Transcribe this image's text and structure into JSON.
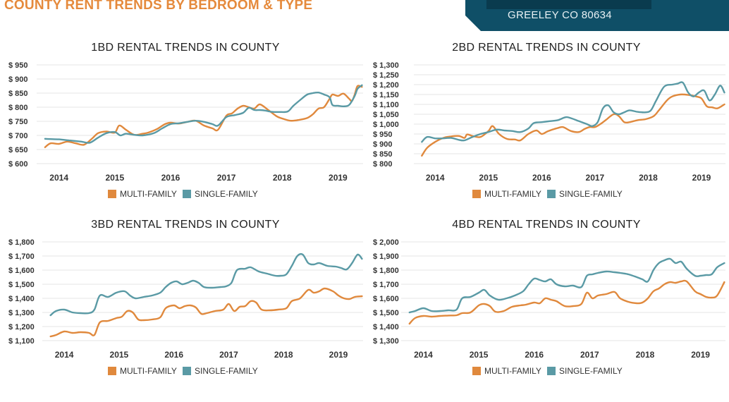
{
  "page": {
    "title": "COUNTY RENT TRENDS BY BEDROOM & TYPE",
    "location": "GREELEY CO 80634"
  },
  "colors": {
    "multi_family": "#e0893d",
    "single_family": "#5a9aa5",
    "grid": "#e6e6e6"
  },
  "chart_data": [
    {
      "type": "line",
      "title": "1BD RENTAL TRENDS IN COUNTY",
      "ylim": [
        600,
        950
      ],
      "yticks": [
        600,
        650,
        700,
        750,
        800,
        850,
        900,
        950
      ],
      "ytick_labels": [
        "$ 600",
        "$ 650",
        "$ 700",
        "$ 750",
        "$ 800",
        "$ 850",
        "$ 900",
        "$ 950"
      ],
      "xlim": [
        2013.6,
        2019.45
      ],
      "xticks": [
        2014,
        2015,
        2016,
        2017,
        2018,
        2019
      ],
      "xtick_labels": [
        "2014",
        "2015",
        "2016",
        "2017",
        "2018",
        "2019"
      ],
      "grid": true,
      "legend": "bottom",
      "series": [
        {
          "name": "MULTI-FAMILY",
          "x": [
            2013.75,
            2013.85,
            2014.0,
            2014.15,
            2014.3,
            2014.45,
            2014.6,
            2014.7,
            2014.85,
            2015.0,
            2015.08,
            2015.2,
            2015.35,
            2015.5,
            2015.6,
            2015.75,
            2015.9,
            2016.0,
            2016.15,
            2016.3,
            2016.45,
            2016.6,
            2016.75,
            2016.85,
            2017.0,
            2017.1,
            2017.2,
            2017.3,
            2017.4,
            2017.5,
            2017.6,
            2017.75,
            2017.9,
            2018.0,
            2018.15,
            2018.3,
            2018.45,
            2018.55,
            2018.65,
            2018.75,
            2018.85,
            2018.9,
            2019.0,
            2019.1,
            2019.2,
            2019.25,
            2019.3,
            2019.35,
            2019.43
          ],
          "y": [
            658,
            672,
            670,
            678,
            672,
            667,
            690,
            708,
            714,
            710,
            735,
            720,
            702,
            706,
            710,
            722,
            740,
            745,
            742,
            748,
            752,
            735,
            725,
            720,
            770,
            778,
            795,
            805,
            800,
            795,
            810,
            790,
            768,
            760,
            752,
            755,
            762,
            775,
            795,
            800,
            830,
            845,
            840,
            848,
            830,
            822,
            845,
            875,
            872
          ]
        },
        {
          "name": "SINGLE-FAMILY",
          "x": [
            2013.75,
            2013.85,
            2014.0,
            2014.2,
            2014.4,
            2014.55,
            2014.7,
            2014.85,
            2015.0,
            2015.1,
            2015.2,
            2015.35,
            2015.5,
            2015.7,
            2015.85,
            2016.0,
            2016.15,
            2016.3,
            2016.45,
            2016.6,
            2016.75,
            2016.85,
            2017.0,
            2017.15,
            2017.3,
            2017.4,
            2017.5,
            2017.6,
            2017.7,
            2017.8,
            2017.95,
            2018.1,
            2018.2,
            2018.35,
            2018.45,
            2018.55,
            2018.65,
            2018.75,
            2018.85,
            2018.9,
            2019.0,
            2019.1,
            2019.2,
            2019.3,
            2019.35,
            2019.43
          ],
          "y": [
            688,
            687,
            686,
            682,
            678,
            674,
            692,
            708,
            712,
            700,
            706,
            702,
            700,
            708,
            725,
            740,
            743,
            748,
            752,
            748,
            740,
            735,
            765,
            772,
            780,
            798,
            790,
            790,
            788,
            784,
            783,
            785,
            805,
            830,
            845,
            850,
            852,
            845,
            835,
            808,
            805,
            803,
            808,
            840,
            865,
            878
          ]
        }
      ]
    },
    {
      "type": "line",
      "title": "2BD RENTAL TRENDS IN COUNTY",
      "ylim": [
        800,
        1300
      ],
      "yticks": [
        800,
        850,
        900,
        950,
        1000,
        1050,
        1100,
        1150,
        1200,
        1250,
        1300
      ],
      "ytick_labels": [
        "$ 800",
        "$ 850",
        "$ 900",
        "$ 950",
        "$ 1,000",
        "$ 1,050",
        "$ 1,100",
        "$ 1,150",
        "$ 1,200",
        "$ 1,250",
        "$ 1,300"
      ],
      "xlim": [
        2013.6,
        2019.45
      ],
      "xticks": [
        2014,
        2015,
        2016,
        2017,
        2018,
        2019
      ],
      "xtick_labels": [
        "2014",
        "2015",
        "2016",
        "2017",
        "2018",
        "2019"
      ],
      "grid": true,
      "legend": "bottom",
      "series": [
        {
          "name": "MULTI-FAMILY",
          "x": [
            2013.75,
            2013.85,
            2014.0,
            2014.15,
            2014.3,
            2014.45,
            2014.55,
            2014.6,
            2014.7,
            2014.85,
            2015.0,
            2015.08,
            2015.2,
            2015.35,
            2015.5,
            2015.6,
            2015.75,
            2015.9,
            2016.0,
            2016.1,
            2016.2,
            2016.3,
            2016.4,
            2016.55,
            2016.7,
            2016.8,
            2016.9,
            2017.0,
            2017.1,
            2017.2,
            2017.35,
            2017.45,
            2017.55,
            2017.65,
            2017.8,
            2017.95,
            2018.1,
            2018.2,
            2018.35,
            2018.45,
            2018.6,
            2018.75,
            2018.9,
            2019.0,
            2019.1,
            2019.2,
            2019.3,
            2019.43
          ],
          "y": [
            840,
            880,
            910,
            930,
            938,
            940,
            930,
            948,
            940,
            935,
            965,
            990,
            950,
            925,
            922,
            918,
            950,
            968,
            950,
            962,
            972,
            980,
            985,
            965,
            960,
            975,
            985,
            985,
            1000,
            1020,
            1050,
            1040,
            1010,
            1010,
            1020,
            1025,
            1040,
            1070,
            1120,
            1140,
            1150,
            1148,
            1140,
            1130,
            1090,
            1085,
            1080,
            1100
          ]
        },
        {
          "name": "SINGLE-FAMILY",
          "x": [
            2013.75,
            2013.85,
            2014.0,
            2014.15,
            2014.3,
            2014.45,
            2014.55,
            2014.7,
            2014.85,
            2015.0,
            2015.15,
            2015.3,
            2015.45,
            2015.6,
            2015.75,
            2015.85,
            2016.0,
            2016.15,
            2016.3,
            2016.45,
            2016.55,
            2016.7,
            2016.85,
            2016.95,
            2017.05,
            2017.15,
            2017.25,
            2017.35,
            2017.45,
            2017.55,
            2017.65,
            2017.8,
            2017.95,
            2018.05,
            2018.15,
            2018.3,
            2018.45,
            2018.55,
            2018.65,
            2018.75,
            2018.85,
            2018.95,
            2019.05,
            2019.15,
            2019.25,
            2019.35,
            2019.43
          ],
          "y": [
            910,
            935,
            928,
            928,
            930,
            920,
            918,
            935,
            950,
            960,
            972,
            968,
            965,
            960,
            978,
            1005,
            1010,
            1015,
            1020,
            1035,
            1030,
            1015,
            1000,
            990,
            1010,
            1080,
            1095,
            1060,
            1050,
            1060,
            1070,
            1062,
            1060,
            1070,
            1120,
            1190,
            1200,
            1205,
            1210,
            1160,
            1140,
            1160,
            1170,
            1120,
            1150,
            1195,
            1160
          ]
        }
      ]
    },
    {
      "type": "line",
      "title": "3BD RENTAL TRENDS IN COUNTY",
      "ylim": [
        1100,
        1800
      ],
      "yticks": [
        1100,
        1200,
        1300,
        1400,
        1500,
        1600,
        1700,
        1800
      ],
      "ytick_labels": [
        "$ 1,100",
        "$ 1,200",
        "$ 1,300",
        "$ 1,400",
        "$ 1,500",
        "$ 1,600",
        "$ 1,700",
        "$ 1,800"
      ],
      "xlim": [
        2013.6,
        2019.45
      ],
      "xticks": [
        2014,
        2015,
        2016,
        2017,
        2018,
        2019
      ],
      "xtick_labels": [
        "2014",
        "2015",
        "2016",
        "2017",
        "2018",
        "2019"
      ],
      "grid": true,
      "legend": "bottom",
      "series": [
        {
          "name": "MULTI-FAMILY",
          "x": [
            2013.75,
            2013.85,
            2014.0,
            2014.15,
            2014.3,
            2014.45,
            2014.55,
            2014.65,
            2014.8,
            2014.95,
            2015.05,
            2015.15,
            2015.25,
            2015.35,
            2015.45,
            2015.6,
            2015.75,
            2015.85,
            2016.0,
            2016.1,
            2016.2,
            2016.3,
            2016.4,
            2016.5,
            2016.6,
            2016.75,
            2016.9,
            2017.0,
            2017.1,
            2017.2,
            2017.3,
            2017.4,
            2017.5,
            2017.6,
            2017.75,
            2017.9,
            2018.05,
            2018.15,
            2018.3,
            2018.45,
            2018.55,
            2018.65,
            2018.75,
            2018.9,
            2019.0,
            2019.1,
            2019.2,
            2019.3,
            2019.43
          ],
          "y": [
            1130,
            1140,
            1165,
            1155,
            1160,
            1155,
            1140,
            1230,
            1240,
            1260,
            1270,
            1310,
            1300,
            1250,
            1245,
            1250,
            1265,
            1330,
            1350,
            1330,
            1345,
            1350,
            1335,
            1290,
            1295,
            1310,
            1320,
            1360,
            1310,
            1340,
            1345,
            1380,
            1370,
            1320,
            1315,
            1320,
            1330,
            1380,
            1400,
            1460,
            1440,
            1450,
            1470,
            1450,
            1420,
            1400,
            1395,
            1410,
            1415
          ]
        },
        {
          "name": "SINGLE-FAMILY",
          "x": [
            2013.75,
            2013.85,
            2014.0,
            2014.15,
            2014.3,
            2014.45,
            2014.55,
            2014.65,
            2014.8,
            2014.95,
            2015.1,
            2015.2,
            2015.3,
            2015.45,
            2015.6,
            2015.75,
            2015.85,
            2015.95,
            2016.05,
            2016.15,
            2016.25,
            2016.35,
            2016.45,
            2016.55,
            2016.7,
            2016.85,
            2016.95,
            2017.05,
            2017.15,
            2017.3,
            2017.4,
            2017.55,
            2017.7,
            2017.85,
            2017.95,
            2018.05,
            2018.15,
            2018.25,
            2018.35,
            2018.45,
            2018.55,
            2018.65,
            2018.8,
            2018.95,
            2019.05,
            2019.15,
            2019.25,
            2019.35,
            2019.43
          ],
          "y": [
            1280,
            1310,
            1320,
            1300,
            1295,
            1295,
            1320,
            1420,
            1410,
            1440,
            1450,
            1420,
            1400,
            1410,
            1420,
            1440,
            1480,
            1510,
            1520,
            1500,
            1510,
            1525,
            1510,
            1480,
            1475,
            1480,
            1485,
            1510,
            1600,
            1610,
            1620,
            1590,
            1575,
            1560,
            1560,
            1570,
            1630,
            1700,
            1710,
            1650,
            1640,
            1650,
            1630,
            1625,
            1615,
            1605,
            1650,
            1710,
            1680
          ]
        }
      ]
    },
    {
      "type": "line",
      "title": "4BD RENTAL TRENDS IN COUNTY",
      "ylim": [
        1300,
        2000
      ],
      "yticks": [
        1300,
        1400,
        1500,
        1600,
        1700,
        1800,
        1900,
        2000
      ],
      "ytick_labels": [
        "$ 1,300",
        "$ 1,400",
        "$ 1,500",
        "$ 1,600",
        "$ 1,700",
        "$ 1,800",
        "$ 1,900",
        "$ 2,000"
      ],
      "xlim": [
        2013.6,
        2019.45
      ],
      "xticks": [
        2014,
        2015,
        2016,
        2017,
        2018,
        2019
      ],
      "xtick_labels": [
        "2014",
        "2015",
        "2016",
        "2017",
        "2018",
        "2019"
      ],
      "grid": true,
      "legend": "bottom",
      "series": [
        {
          "name": "MULTI-FAMILY",
          "x": [
            2013.75,
            2013.85,
            2014.0,
            2014.15,
            2014.3,
            2014.45,
            2014.6,
            2014.7,
            2014.85,
            2015.0,
            2015.1,
            2015.2,
            2015.3,
            2015.45,
            2015.6,
            2015.75,
            2015.85,
            2016.0,
            2016.1,
            2016.2,
            2016.3,
            2016.4,
            2016.55,
            2016.7,
            2016.85,
            2016.95,
            2017.05,
            2017.15,
            2017.3,
            2017.45,
            2017.55,
            2017.7,
            2017.85,
            2017.95,
            2018.05,
            2018.15,
            2018.25,
            2018.35,
            2018.45,
            2018.55,
            2018.65,
            2018.75,
            2018.9,
            2019.0,
            2019.1,
            2019.2,
            2019.3,
            2019.43
          ],
          "y": [
            1420,
            1460,
            1475,
            1470,
            1475,
            1478,
            1480,
            1495,
            1500,
            1550,
            1560,
            1545,
            1505,
            1510,
            1540,
            1550,
            1555,
            1570,
            1565,
            1600,
            1590,
            1580,
            1545,
            1545,
            1560,
            1640,
            1600,
            1620,
            1630,
            1645,
            1600,
            1575,
            1565,
            1570,
            1600,
            1650,
            1670,
            1700,
            1715,
            1710,
            1720,
            1720,
            1650,
            1630,
            1610,
            1605,
            1620,
            1715
          ]
        },
        {
          "name": "SINGLE-FAMILY",
          "x": [
            2013.75,
            2013.85,
            2014.0,
            2014.15,
            2014.3,
            2014.45,
            2014.6,
            2014.7,
            2014.85,
            2015.0,
            2015.1,
            2015.2,
            2015.35,
            2015.5,
            2015.65,
            2015.8,
            2015.9,
            2016.0,
            2016.1,
            2016.2,
            2016.3,
            2016.4,
            2016.55,
            2016.7,
            2016.85,
            2016.95,
            2017.05,
            2017.15,
            2017.3,
            2017.45,
            2017.55,
            2017.7,
            2017.85,
            2017.95,
            2018.05,
            2018.15,
            2018.25,
            2018.35,
            2018.45,
            2018.55,
            2018.65,
            2018.75,
            2018.9,
            2019.0,
            2019.1,
            2019.2,
            2019.3,
            2019.43
          ],
          "y": [
            1500,
            1510,
            1530,
            1510,
            1510,
            1515,
            1520,
            1600,
            1610,
            1640,
            1660,
            1620,
            1590,
            1600,
            1620,
            1650,
            1700,
            1740,
            1730,
            1720,
            1735,
            1700,
            1685,
            1690,
            1680,
            1760,
            1770,
            1780,
            1790,
            1785,
            1780,
            1770,
            1750,
            1735,
            1720,
            1800,
            1850,
            1870,
            1880,
            1850,
            1860,
            1810,
            1760,
            1760,
            1765,
            1770,
            1820,
            1850
          ]
        }
      ]
    }
  ]
}
